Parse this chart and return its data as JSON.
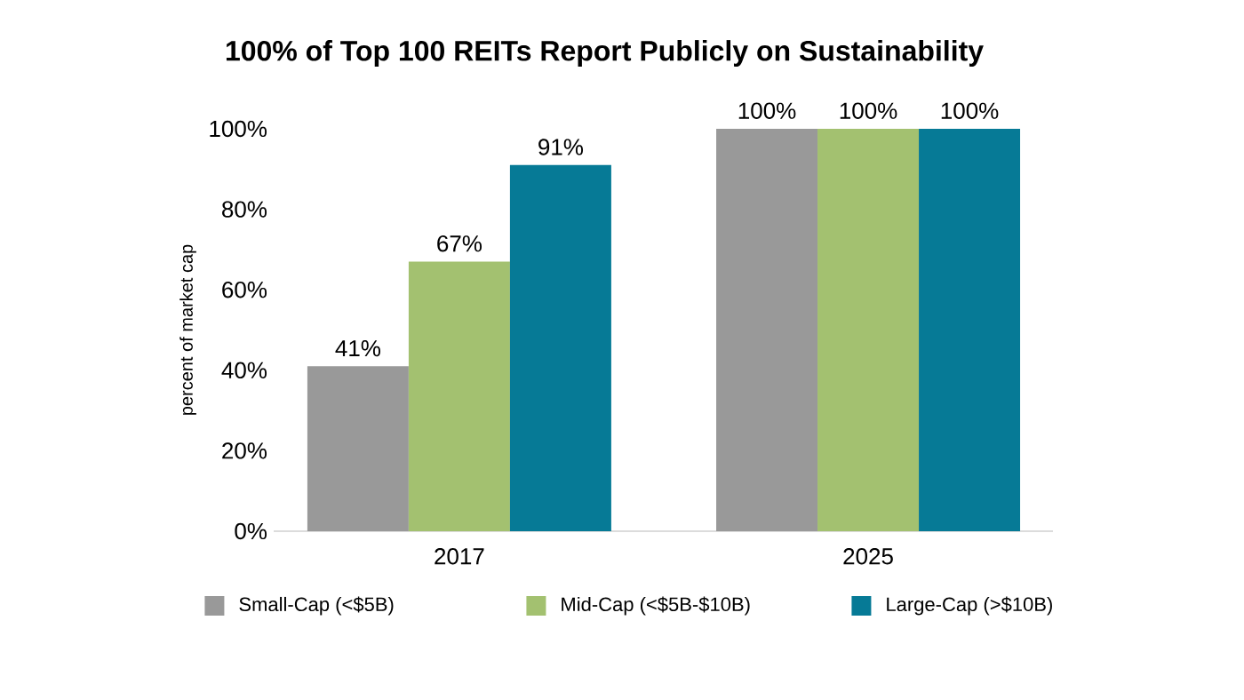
{
  "chart_data": {
    "type": "bar",
    "title": "100% of Top 100 REITs Report Publicly on Sustainability",
    "ylabel": "percent of market cap",
    "categories": [
      "2017",
      "2025"
    ],
    "series": [
      {
        "name": "Small-Cap (<$5B)",
        "color": "#999999",
        "values": [
          41,
          100
        ],
        "value_labels": [
          "41%",
          "100%"
        ]
      },
      {
        "name": "Mid-Cap (<$5B-$10B)",
        "color": "#a3c170",
        "values": [
          67,
          100
        ],
        "value_labels": [
          "67%",
          "100%"
        ]
      },
      {
        "name": "Large-Cap (>$10B)",
        "color": "#067a96",
        "values": [
          91,
          100
        ],
        "value_labels": [
          "91%",
          "100%"
        ]
      }
    ],
    "ylim": [
      0,
      100
    ],
    "yticks": [
      {
        "value": 0,
        "label": "0%"
      },
      {
        "value": 20,
        "label": "20%"
      },
      {
        "value": 40,
        "label": "40%"
      },
      {
        "value": 60,
        "label": "60%"
      },
      {
        "value": 80,
        "label": "80%"
      },
      {
        "value": 100,
        "label": "100%"
      }
    ],
    "legend": "bottom",
    "grid": false
  }
}
